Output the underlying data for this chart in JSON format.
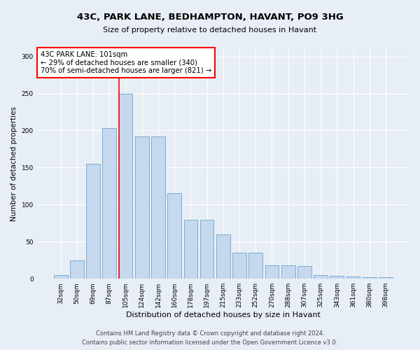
{
  "title1": "43C, PARK LANE, BEDHAMPTON, HAVANT, PO9 3HG",
  "title2": "Size of property relative to detached houses in Havant",
  "xlabel": "Distribution of detached houses by size in Havant",
  "ylabel": "Number of detached properties",
  "categories": [
    "32sqm",
    "50sqm",
    "69sqm",
    "87sqm",
    "105sqm",
    "124sqm",
    "142sqm",
    "160sqm",
    "178sqm",
    "197sqm",
    "215sqm",
    "233sqm",
    "252sqm",
    "270sqm",
    "288sqm",
    "307sqm",
    "325sqm",
    "343sqm",
    "361sqm",
    "380sqm",
    "398sqm"
  ],
  "values": [
    5,
    25,
    155,
    203,
    250,
    192,
    192,
    115,
    80,
    80,
    60,
    35,
    35,
    18,
    18,
    17,
    5,
    4,
    3,
    2,
    2
  ],
  "bar_color": "#c5d8ee",
  "bar_edge_color": "#7aadd4",
  "red_line_index": 4,
  "annotation_text": "43C PARK LANE: 101sqm\n← 29% of detached houses are smaller (340)\n70% of semi-detached houses are larger (821) →",
  "ylim": [
    0,
    310
  ],
  "yticks": [
    0,
    50,
    100,
    150,
    200,
    250,
    300
  ],
  "footer_line1": "Contains HM Land Registry data © Crown copyright and database right 2024.",
  "footer_line2": "Contains public sector information licensed under the Open Government Licence v3.0.",
  "background_color": "#e8eef5",
  "plot_bg_color": "#e8eef5",
  "grid_color": "white",
  "title1_fontsize": 9.5,
  "title2_fontsize": 8.0,
  "ylabel_fontsize": 7.5,
  "xlabel_fontsize": 8.0,
  "tick_fontsize": 6.5,
  "annotation_fontsize": 7.2,
  "footer_fontsize": 6.0
}
